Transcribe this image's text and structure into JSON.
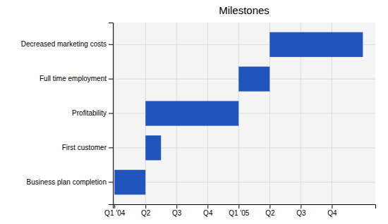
{
  "chart_data": {
    "type": "gantt",
    "title": "Milestones",
    "orientation": "horizontal",
    "categories": [
      "Business plan completion",
      "First customer",
      "Profitability",
      "Full time employment",
      "Decreased marketing costs"
    ],
    "start": [
      0,
      1,
      1,
      4,
      5
    ],
    "values": [
      1,
      0.5,
      3,
      1,
      3
    ],
    "color": "#2255BB",
    "xlim": [
      -0.05,
      8.4
    ],
    "xticks": [
      {
        "value": 0,
        "label": "Q1 '04"
      },
      {
        "value": 1,
        "label": "Q2"
      },
      {
        "value": 2,
        "label": "Q3"
      },
      {
        "value": 3,
        "label": "Q4"
      },
      {
        "value": 4,
        "label": "Q1 '05"
      },
      {
        "value": 5,
        "label": "Q2"
      },
      {
        "value": 6,
        "label": "Q3"
      },
      {
        "value": 7,
        "label": "Q4"
      }
    ],
    "grid": true
  }
}
